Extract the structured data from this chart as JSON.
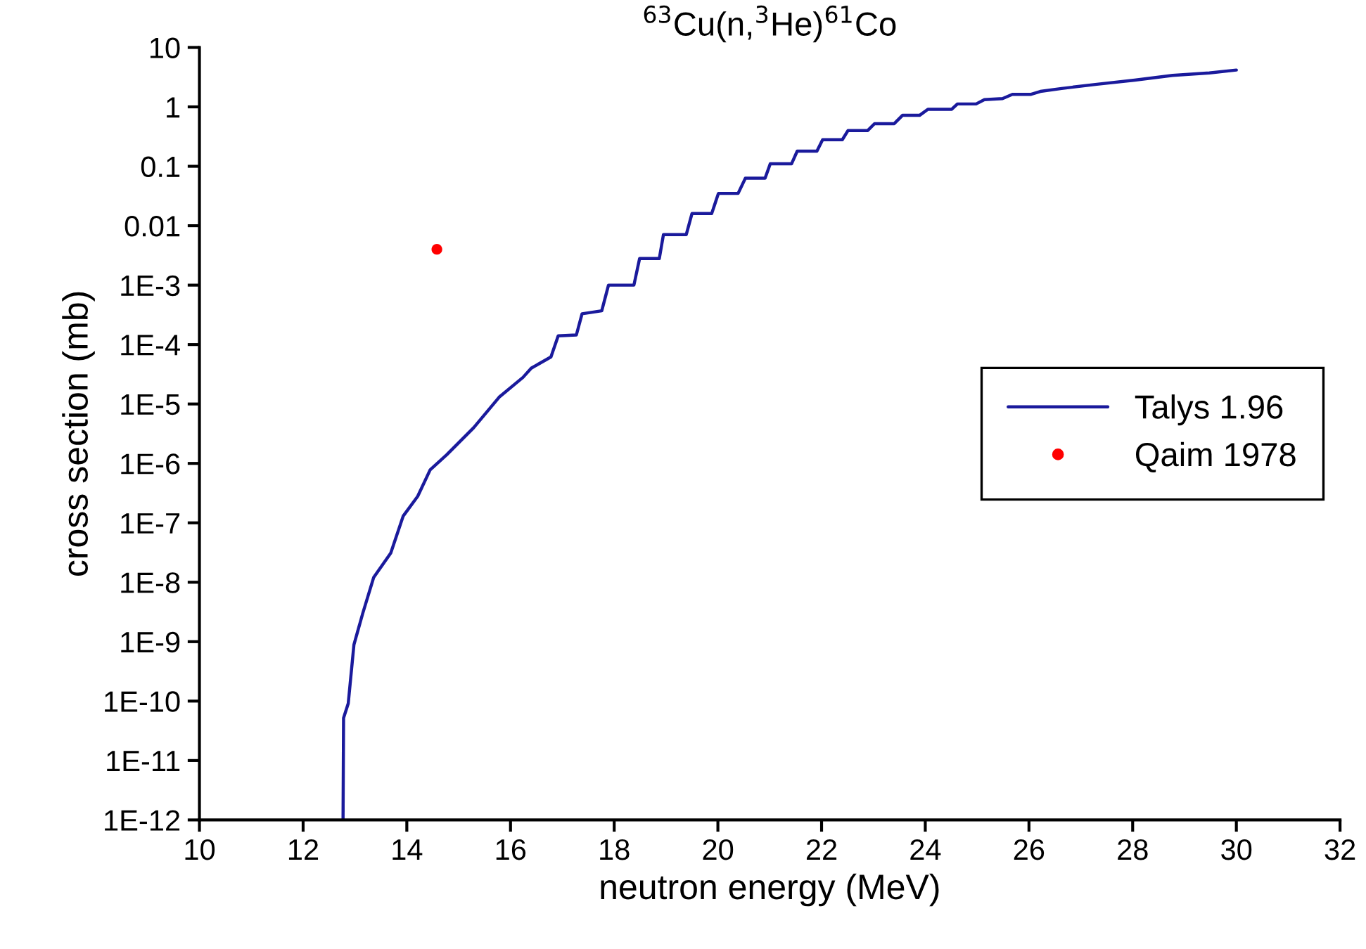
{
  "chart_data": {
    "type": "line",
    "title": "$^{63}$Cu(n,$^{3}$He)$^{61}$Co",
    "xlabel": "neutron energy (MeV)",
    "ylabel": "cross section (mb)",
    "log": "y",
    "grid": false,
    "legend": "center right",
    "xlim": [
      10,
      32
    ],
    "xticks": [
      10,
      12,
      14,
      16,
      18,
      20,
      22,
      24,
      26,
      28,
      30,
      32
    ],
    "ylim": [
      1e-12,
      10
    ],
    "yticks": [
      {
        "value": 10,
        "label": "10"
      },
      {
        "value": 1,
        "label": "1"
      },
      {
        "value": 0.1,
        "label": "0.1"
      },
      {
        "value": 0.01,
        "label": "0.01"
      },
      {
        "value": 0.001,
        "label": "1E-3"
      },
      {
        "value": 0.0001,
        "label": "1E-4"
      },
      {
        "value": 1e-05,
        "label": "1E-5"
      },
      {
        "value": 1e-06,
        "label": "1E-6"
      },
      {
        "value": 1e-07,
        "label": "1E-7"
      },
      {
        "value": 1e-08,
        "label": "1E-8"
      },
      {
        "value": 1e-09,
        "label": "1E-9"
      },
      {
        "value": 1e-10,
        "label": "1E-10"
      },
      {
        "value": 1e-11,
        "label": "1E-11"
      },
      {
        "value": 1e-12,
        "label": "1E-12"
      }
    ],
    "series": [
      {
        "name": "Talys 1.96",
        "color": "#1a1a9c",
        "line_style": "solid",
        "marker": "none",
        "x": [
          12.77,
          12.78,
          12.87,
          12.98,
          13.15,
          13.36,
          13.69,
          13.93,
          14.21,
          14.45,
          14.77,
          15.29,
          15.78,
          16.24,
          16.4,
          16.78,
          16.92,
          17.27,
          17.38,
          17.76,
          17.89,
          18.38,
          18.49,
          18.87,
          18.95,
          19.39,
          19.5,
          19.88,
          20.01,
          20.39,
          20.53,
          20.91,
          21.01,
          21.42,
          21.53,
          21.91,
          22.02,
          22.4,
          22.51,
          22.89,
          23.02,
          23.4,
          23.56,
          23.89,
          24.05,
          24.51,
          24.62,
          24.98,
          25.14,
          25.49,
          25.68,
          26.03,
          26.22,
          26.63,
          27.31,
          28.04,
          28.77,
          29.48,
          30.0
        ],
        "values": [
          1e-12,
          5.2e-11,
          9.1e-11,
          8.9e-10,
          3e-09,
          1.2e-08,
          3.1e-08,
          1.3e-07,
          2.8e-07,
          7.8e-07,
          1.4e-06,
          4e-06,
          1.3e-05,
          2.8e-05,
          4e-05,
          6.2e-05,
          0.00014,
          0.000145,
          0.00033,
          0.00037,
          0.001,
          0.001,
          0.0028,
          0.0028,
          0.0071,
          0.0071,
          0.016,
          0.016,
          0.035,
          0.035,
          0.063,
          0.063,
          0.11,
          0.11,
          0.18,
          0.18,
          0.28,
          0.28,
          0.4,
          0.4,
          0.52,
          0.52,
          0.72,
          0.72,
          0.91,
          0.91,
          1.12,
          1.12,
          1.32,
          1.38,
          1.62,
          1.62,
          1.82,
          2.04,
          2.4,
          2.82,
          3.39,
          3.72,
          4.17
        ]
      },
      {
        "name": "Qaim 1978",
        "type": "scatter",
        "color": "#ff0000",
        "marker": "circle",
        "x": [
          14.58
        ],
        "values": [
          0.004
        ]
      }
    ]
  }
}
